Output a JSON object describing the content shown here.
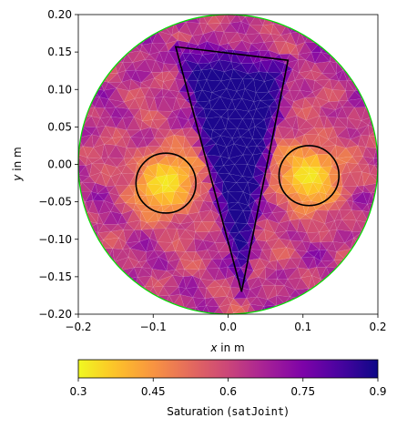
{
  "chart_data": {
    "type": "heatmap",
    "title": "",
    "plot_kind": "triangular-mesh field on circular domain",
    "xlabel": {
      "var": "x",
      "unit": " in m"
    },
    "ylabel": {
      "var": "y",
      "unit": " in m"
    },
    "xlim": [
      -0.2,
      0.2
    ],
    "ylim": [
      -0.2,
      0.2
    ],
    "xticks": [
      "−0.2",
      "−0.1",
      "0.0",
      "0.1",
      "0.2"
    ],
    "yticks": [
      "−0.20",
      "−0.15",
      "−0.10",
      "−0.05",
      "0.00",
      "0.05",
      "0.10",
      "0.15",
      "0.20"
    ],
    "xtick_values": [
      -0.2,
      -0.1,
      0.0,
      0.1,
      0.2
    ],
    "ytick_values": [
      -0.2,
      -0.15,
      -0.1,
      -0.05,
      0.0,
      0.05,
      0.1,
      0.15,
      0.2
    ],
    "domain": {
      "shape": "circle",
      "center": [
        0.0,
        0.0
      ],
      "radius": 0.2,
      "boundary_color": "#00e000"
    },
    "colormap": "plasma_r",
    "colorbar": {
      "orientation": "horizontal",
      "label_prefix": "Saturation (",
      "label_code": "satJoint",
      "label_suffix": ")",
      "vmin": 0.3,
      "vmax": 0.9,
      "ticks": [
        "0.3",
        "0.45",
        "0.6",
        "0.75",
        "0.9"
      ],
      "tick_values": [
        0.3,
        0.45,
        0.6,
        0.75,
        0.9
      ]
    },
    "background_saturation": 0.63,
    "anomalies": [
      {
        "name": "left-inclusion",
        "shape": "circle",
        "center": [
          -0.083,
          -0.025
        ],
        "radius": 0.04,
        "saturation": 0.32
      },
      {
        "name": "right-inclusion",
        "shape": "circle",
        "center": [
          0.108,
          -0.015
        ],
        "radius": 0.04,
        "saturation": 0.32
      },
      {
        "name": "triangle-inclusion",
        "shape": "triangle",
        "vertices": [
          [
            -0.07,
            0.157
          ],
          [
            0.08,
            0.139
          ],
          [
            0.018,
            -0.17
          ]
        ],
        "saturation": 0.88
      }
    ],
    "outline_color": "#000000"
  }
}
